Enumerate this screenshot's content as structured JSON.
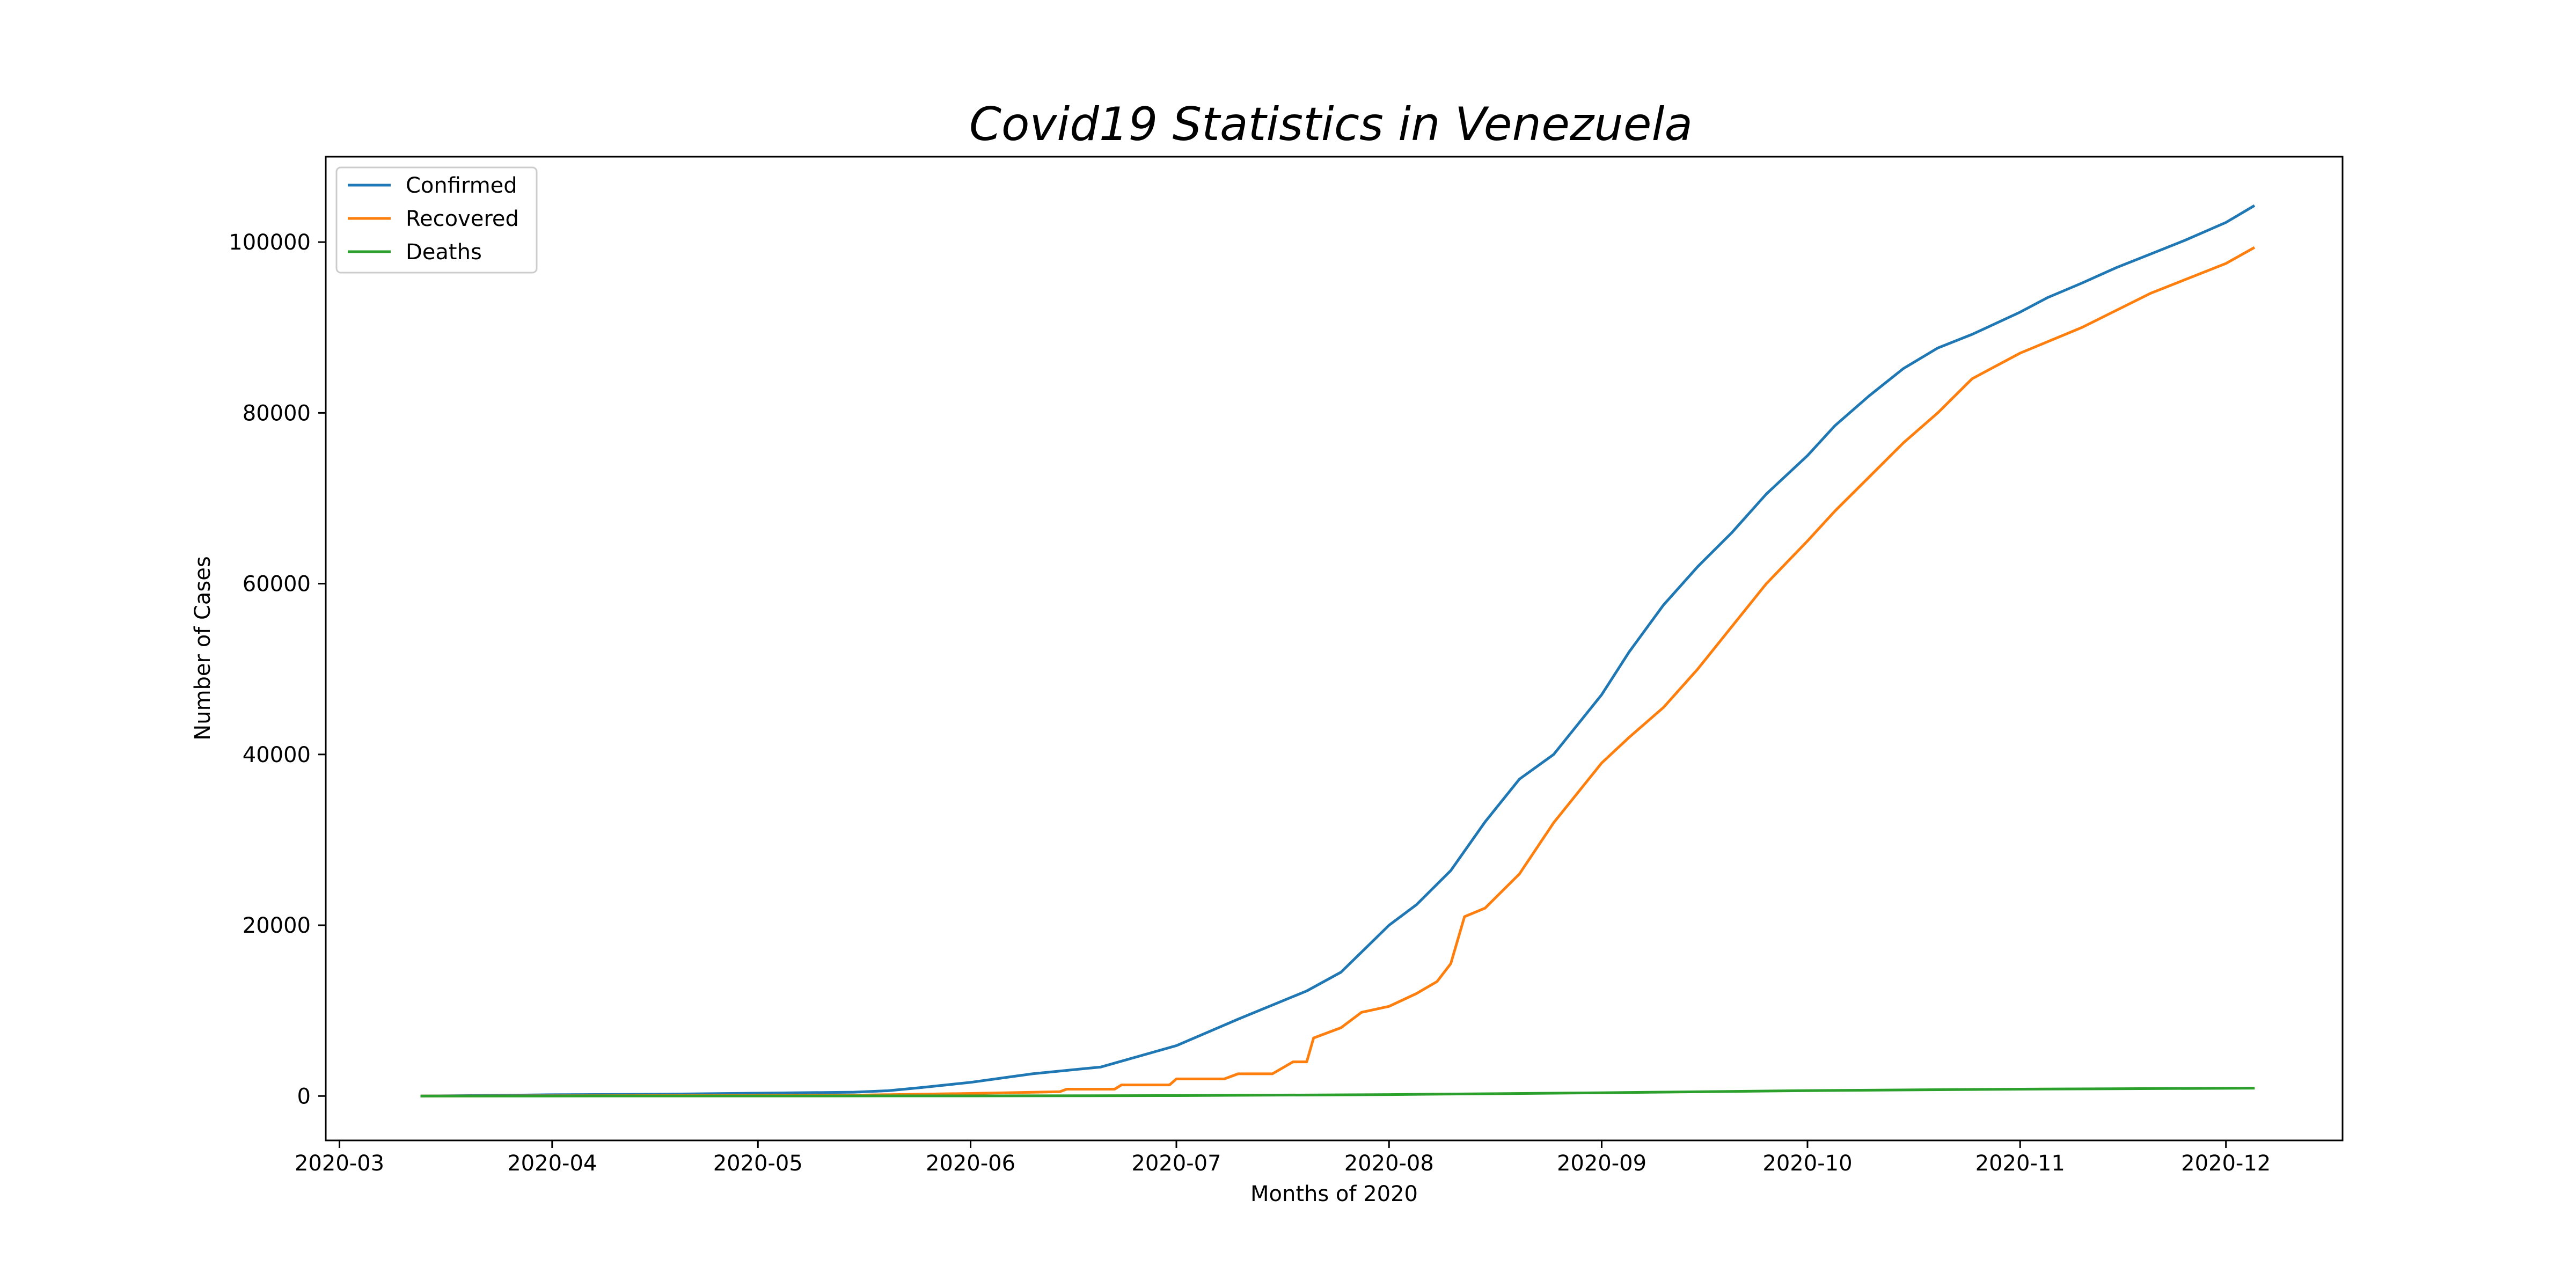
{
  "chart_data": {
    "type": "line",
    "title": "Covid19 Statistics in Venezuela",
    "xlabel": "Months of 2020",
    "ylabel": "Number of Cases",
    "x_ticks": [
      "2020-03",
      "2020-04",
      "2020-05",
      "2020-06",
      "2020-07",
      "2020-08",
      "2020-09",
      "2020-10",
      "2020-11",
      "2020-12"
    ],
    "y_ticks": [
      0,
      20000,
      40000,
      60000,
      80000,
      100000
    ],
    "xlim": [
      "2020-02-28",
      "2020-12-18"
    ],
    "ylim": [
      -5200,
      110000
    ],
    "grid": false,
    "legend_position": "top-left",
    "series": [
      {
        "name": "Confirmed",
        "color": "#1f77b4",
        "points": [
          [
            "2020-03-13",
            0
          ],
          [
            "2020-03-20",
            50
          ],
          [
            "2020-04-01",
            150
          ],
          [
            "2020-04-15",
            200
          ],
          [
            "2020-05-01",
            330
          ],
          [
            "2020-05-15",
            450
          ],
          [
            "2020-05-20",
            620
          ],
          [
            "2020-05-25",
            1000
          ],
          [
            "2020-06-01",
            1600
          ],
          [
            "2020-06-10",
            2600
          ],
          [
            "2020-06-20",
            3400
          ],
          [
            "2020-07-01",
            5900
          ],
          [
            "2020-07-10",
            9000
          ],
          [
            "2020-07-20",
            12300
          ],
          [
            "2020-07-25",
            14500
          ],
          [
            "2020-08-01",
            20000
          ],
          [
            "2020-08-05",
            22400
          ],
          [
            "2020-08-10",
            26400
          ],
          [
            "2020-08-15",
            32100
          ],
          [
            "2020-08-20",
            37100
          ],
          [
            "2020-08-25",
            40000
          ],
          [
            "2020-09-01",
            47000
          ],
          [
            "2020-09-05",
            52000
          ],
          [
            "2020-09-10",
            57500
          ],
          [
            "2020-09-15",
            62000
          ],
          [
            "2020-09-20",
            66000
          ],
          [
            "2020-09-25",
            70500
          ],
          [
            "2020-10-01",
            75000
          ],
          [
            "2020-10-05",
            78500
          ],
          [
            "2020-10-10",
            82000
          ],
          [
            "2020-10-15",
            85200
          ],
          [
            "2020-10-20",
            87600
          ],
          [
            "2020-10-25",
            89200
          ],
          [
            "2020-11-01",
            91800
          ],
          [
            "2020-11-05",
            93500
          ],
          [
            "2020-11-10",
            95200
          ],
          [
            "2020-11-15",
            97000
          ],
          [
            "2020-11-20",
            98600
          ],
          [
            "2020-11-25",
            100200
          ],
          [
            "2020-12-01",
            102300
          ],
          [
            "2020-12-05",
            104200
          ]
        ]
      },
      {
        "name": "Recovered",
        "color": "#ff7f0e",
        "points": [
          [
            "2020-03-13",
            0
          ],
          [
            "2020-04-15",
            50
          ],
          [
            "2020-05-15",
            100
          ],
          [
            "2020-06-01",
            300
          ],
          [
            "2020-06-14",
            500
          ],
          [
            "2020-06-15",
            800
          ],
          [
            "2020-06-22",
            800
          ],
          [
            "2020-06-23",
            1300
          ],
          [
            "2020-06-30",
            1300
          ],
          [
            "2020-07-01",
            2000
          ],
          [
            "2020-07-08",
            2000
          ],
          [
            "2020-07-10",
            2600
          ],
          [
            "2020-07-15",
            2600
          ],
          [
            "2020-07-18",
            4000
          ],
          [
            "2020-07-20",
            4000
          ],
          [
            "2020-07-21",
            6800
          ],
          [
            "2020-07-25",
            8000
          ],
          [
            "2020-07-28",
            9800
          ],
          [
            "2020-08-01",
            10500
          ],
          [
            "2020-08-05",
            12000
          ],
          [
            "2020-08-08",
            13400
          ],
          [
            "2020-08-10",
            15500
          ],
          [
            "2020-08-12",
            21000
          ],
          [
            "2020-08-15",
            22000
          ],
          [
            "2020-08-20",
            26000
          ],
          [
            "2020-08-25",
            32000
          ],
          [
            "2020-09-01",
            39000
          ],
          [
            "2020-09-05",
            42000
          ],
          [
            "2020-09-10",
            45500
          ],
          [
            "2020-09-15",
            50000
          ],
          [
            "2020-09-20",
            55000
          ],
          [
            "2020-09-25",
            60000
          ],
          [
            "2020-10-01",
            65000
          ],
          [
            "2020-10-05",
            68500
          ],
          [
            "2020-10-10",
            72500
          ],
          [
            "2020-10-15",
            76500
          ],
          [
            "2020-10-20",
            80000
          ],
          [
            "2020-10-25",
            84000
          ],
          [
            "2020-11-01",
            87000
          ],
          [
            "2020-11-10",
            90000
          ],
          [
            "2020-11-20",
            94000
          ],
          [
            "2020-12-01",
            97500
          ],
          [
            "2020-12-05",
            99300
          ]
        ]
      },
      {
        "name": "Deaths",
        "color": "#2ca02c",
        "points": [
          [
            "2020-03-13",
            0
          ],
          [
            "2020-05-01",
            10
          ],
          [
            "2020-06-01",
            15
          ],
          [
            "2020-07-01",
            50
          ],
          [
            "2020-08-01",
            170
          ],
          [
            "2020-09-01",
            380
          ],
          [
            "2020-10-01",
            630
          ],
          [
            "2020-11-01",
            800
          ],
          [
            "2020-12-05",
            920
          ]
        ]
      }
    ]
  }
}
